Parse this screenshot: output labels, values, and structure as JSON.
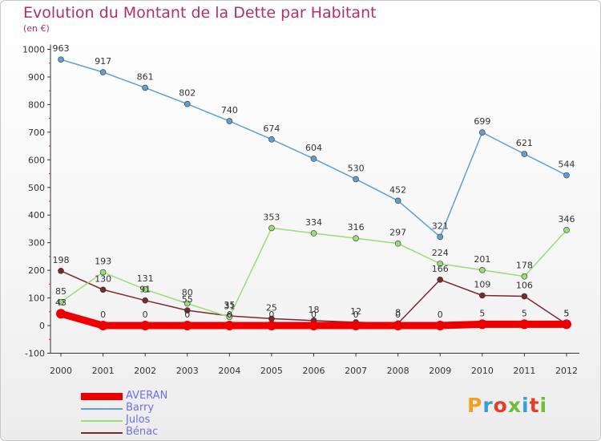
{
  "title": "Evolution du Montant de la Dette par Habitant",
  "subtitle": "(en €)",
  "logo_text": "Proxiti",
  "logo_colors": [
    "#f3a01e",
    "#3a9be0",
    "#e53d2a",
    "#6dbe3c",
    "#3a9be0",
    "#e53d2a",
    "#6dbe3c"
  ],
  "chart_data": {
    "type": "line",
    "x": [
      "2000",
      "2001",
      "2002",
      "2003",
      "2004",
      "2005",
      "2006",
      "2007",
      "2008",
      "2009",
      "2010",
      "2011",
      "2012"
    ],
    "ylim": [
      -100,
      1000
    ],
    "yticks": [
      -100,
      0,
      100,
      200,
      300,
      400,
      500,
      600,
      700,
      800,
      900,
      1000
    ],
    "grid": false,
    "legend_position": "bottom-left",
    "series": [
      {
        "name": "AVERAN",
        "color": "#ee0000",
        "values": [
          43,
          0,
          0,
          0,
          0,
          0,
          0,
          0,
          0,
          0,
          5,
          5,
          5
        ],
        "labels": [
          "43",
          "0",
          "0",
          "0",
          "0",
          "0",
          "0",
          "0",
          "0",
          "0",
          "5",
          "5",
          "5"
        ],
        "bold": true
      },
      {
        "name": "Barry",
        "color": "#5f9fd1",
        "values": [
          963,
          917,
          861,
          802,
          740,
          674,
          604,
          530,
          452,
          321,
          699,
          621,
          544
        ],
        "labels": [
          "963",
          "917",
          "861",
          "802",
          "740",
          "674",
          "604",
          "530",
          "452",
          "321",
          "699",
          "621",
          "544"
        ]
      },
      {
        "name": "Julos",
        "color": "#9cdc77",
        "values": [
          85,
          193,
          131,
          80,
          31,
          353,
          334,
          316,
          297,
          224,
          201,
          178,
          346
        ],
        "labels": [
          "85",
          "193",
          "131",
          "80",
          "31",
          "353",
          "334",
          "316",
          "297",
          "224",
          "201",
          "178",
          "346"
        ]
      },
      {
        "name": "Bénac",
        "color": "#7a2a2a",
        "values": [
          198,
          130,
          91,
          55,
          35,
          25,
          18,
          12,
          8,
          166,
          109,
          106,
          5
        ],
        "labels": [
          "198",
          "130",
          "91",
          "55",
          "35",
          "25",
          "18",
          "12",
          "8",
          "166",
          "109",
          "106",
          "5"
        ]
      }
    ]
  }
}
